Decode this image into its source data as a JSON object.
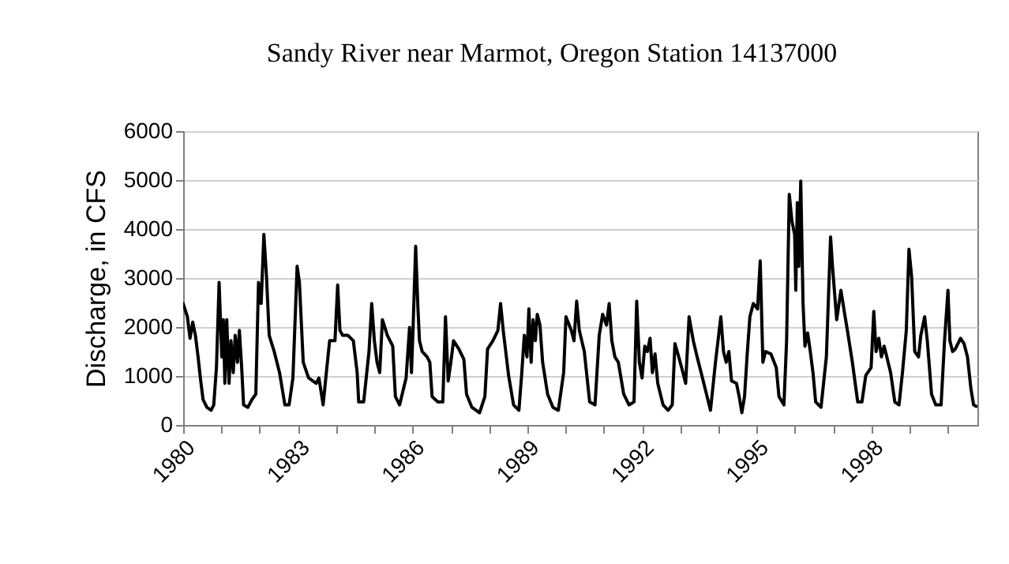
{
  "chart_data": {
    "type": "line",
    "title": "Sandy River near Marmot, Oregon Station 14137000",
    "ylabel": "Discharge, in CFS",
    "x": [
      1980.0,
      1980.11,
      1980.18,
      1980.25,
      1980.32,
      1980.39,
      1980.45,
      1980.52,
      1980.62,
      1980.73,
      1980.8,
      1980.87,
      1980.94,
      1981.01,
      1981.05,
      1981.09,
      1981.14,
      1981.2,
      1981.25,
      1981.31,
      1981.36,
      1981.42,
      1981.47,
      1981.53,
      1981.58,
      1981.69,
      1981.8,
      1981.9,
      1981.97,
      1982.04,
      1982.11,
      1982.18,
      1982.25,
      1982.38,
      1982.52,
      1982.66,
      1982.77,
      1982.87,
      1982.98,
      1983.04,
      1983.14,
      1983.28,
      1983.48,
      1983.55,
      1983.66,
      1983.73,
      1983.83,
      1983.97,
      1984.04,
      1984.1,
      1984.17,
      1984.31,
      1984.45,
      1984.55,
      1984.59,
      1984.72,
      1984.86,
      1984.93,
      1985.0,
      1985.07,
      1985.14,
      1985.21,
      1985.34,
      1985.48,
      1985.55,
      1985.66,
      1985.83,
      1985.92,
      1985.97,
      1986.01,
      1986.08,
      1986.14,
      1986.18,
      1986.25,
      1986.38,
      1986.45,
      1986.51,
      1986.66,
      1986.79,
      1986.86,
      1986.93,
      1987.0,
      1987.07,
      1987.21,
      1987.34,
      1987.41,
      1987.55,
      1987.75,
      1987.89,
      1987.96,
      1988.1,
      1988.23,
      1988.3,
      1988.37,
      1988.51,
      1988.64,
      1988.78,
      1988.85,
      1988.92,
      1988.99,
      1989.04,
      1989.1,
      1989.15,
      1989.21,
      1989.26,
      1989.33,
      1989.4,
      1989.53,
      1989.67,
      1989.81,
      1989.95,
      1990.01,
      1990.15,
      1990.22,
      1990.29,
      1990.36,
      1990.49,
      1990.63,
      1990.77,
      1990.88,
      1990.97,
      1991.07,
      1991.14,
      1991.21,
      1991.29,
      1991.38,
      1991.52,
      1991.66,
      1991.79,
      1991.86,
      1991.93,
      1992.0,
      1992.07,
      1992.14,
      1992.21,
      1992.27,
      1992.34,
      1992.41,
      1992.55,
      1992.68,
      1992.79,
      1992.86,
      1992.96,
      1993.07,
      1993.14,
      1993.23,
      1993.34,
      1993.44,
      1993.58,
      1993.72,
      1993.79,
      1993.92,
      1994.06,
      1994.13,
      1994.2,
      1994.27,
      1994.34,
      1994.47,
      1994.54,
      1994.61,
      1994.68,
      1994.75,
      1994.82,
      1994.91,
      1995.02,
      1995.09,
      1995.16,
      1995.23,
      1995.37,
      1995.51,
      1995.58,
      1995.71,
      1995.78,
      1995.85,
      1995.92,
      1995.99,
      1996.02,
      1996.06,
      1996.1,
      1996.15,
      1996.21,
      1996.26,
      1996.33,
      1996.4,
      1996.47,
      1996.54,
      1996.68,
      1996.82,
      1996.93,
      1996.98,
      1997.09,
      1997.2,
      1997.3,
      1997.37,
      1997.5,
      1997.64,
      1997.75,
      1997.85,
      1997.99,
      1998.06,
      1998.12,
      1998.19,
      1998.26,
      1998.33,
      1998.4,
      1998.5,
      1998.61,
      1998.72,
      1998.81,
      1998.91,
      1998.98,
      1999.05,
      1999.13,
      1999.23,
      1999.29,
      1999.39,
      1999.46,
      1999.57,
      1999.68,
      1999.82,
      1999.91,
      2000.0,
      2000.05,
      2000.12,
      2000.19,
      2000.33,
      2000.42,
      2000.51,
      2000.6,
      2000.67,
      2000.74
    ],
    "series": [
      {
        "color": "#000000",
        "values": [
          2480,
          2210,
          1770,
          2100,
          1830,
          1390,
          960,
          520,
          360,
          300,
          410,
          1170,
          2910,
          1390,
          2150,
          850,
          2150,
          850,
          1720,
          1070,
          1830,
          1280,
          1930,
          1170,
          410,
          360,
          520,
          630,
          2910,
          2480,
          3890,
          3020,
          1830,
          1500,
          1070,
          410,
          410,
          960,
          3240,
          2910,
          1280,
          960,
          850,
          960,
          410,
          960,
          1720,
          1720,
          2860,
          1930,
          1830,
          1830,
          1720,
          1070,
          470,
          470,
          1500,
          2480,
          1720,
          1280,
          1070,
          2150,
          1830,
          1610,
          580,
          410,
          960,
          1990,
          1070,
          1930,
          3650,
          2370,
          1720,
          1500,
          1390,
          1280,
          580,
          470,
          470,
          2210,
          900,
          1280,
          1720,
          1550,
          1340,
          630,
          360,
          250,
          580,
          1550,
          1720,
          1930,
          2480,
          1930,
          1010,
          410,
          300,
          1010,
          1830,
          1390,
          2370,
          1280,
          2150,
          1720,
          2260,
          2040,
          1280,
          630,
          360,
          300,
          1070,
          2210,
          1930,
          1720,
          2530,
          1930,
          1500,
          470,
          410,
          1830,
          2260,
          2040,
          2480,
          1720,
          1390,
          1280,
          630,
          410,
          470,
          2530,
          1280,
          960,
          1610,
          1500,
          1770,
          1070,
          1450,
          850,
          410,
          300,
          410,
          1660,
          1390,
          1070,
          850,
          2210,
          1720,
          1390,
          960,
          520,
          300,
          1280,
          2210,
          1500,
          1280,
          1500,
          900,
          850,
          580,
          250,
          580,
          1450,
          2210,
          2480,
          2370,
          3350,
          1280,
          1500,
          1450,
          1170,
          580,
          410,
          1720,
          4710,
          4160,
          3890,
          2750,
          4540,
          3240,
          4980,
          2480,
          1610,
          1880,
          1500,
          1070,
          470,
          360,
          1390,
          3840,
          3240,
          2150,
          2750,
          2260,
          1930,
          1280,
          470,
          470,
          1010,
          1170,
          2320,
          1500,
          1770,
          1390,
          1610,
          1390,
          1070,
          470,
          410,
          1070,
          1930,
          3590,
          3020,
          1500,
          1390,
          1830,
          2210,
          1720,
          630,
          410,
          410,
          1720,
          2750,
          1720,
          1500,
          1550,
          1770,
          1660,
          1390,
          740,
          410,
          380
        ]
      }
    ],
    "xlim": [
      1980,
      2000.77
    ],
    "xticks": [
      1980,
      {
        "value": 1981,
        "label": null
      },
      {
        "value": 1982,
        "label": null
      },
      1983,
      {
        "value": 1984,
        "label": null
      },
      {
        "value": 1985,
        "label": null
      },
      1986,
      {
        "value": 1987,
        "label": null
      },
      {
        "value": 1988,
        "label": null
      },
      1989,
      {
        "value": 1990,
        "label": null
      },
      {
        "value": 1991,
        "label": null
      },
      1992,
      {
        "value": 1993,
        "label": null
      },
      {
        "value": 1994,
        "label": null
      },
      1995,
      {
        "value": 1996,
        "label": null
      },
      {
        "value": 1997,
        "label": null
      },
      1998,
      {
        "value": 1999,
        "label": null
      },
      {
        "value": 2000,
        "label": null
      }
    ],
    "ylim": [
      0,
      6000
    ],
    "yticks": [
      0,
      1000,
      2000,
      3000,
      4000,
      5000,
      6000
    ],
    "grid": "y"
  }
}
